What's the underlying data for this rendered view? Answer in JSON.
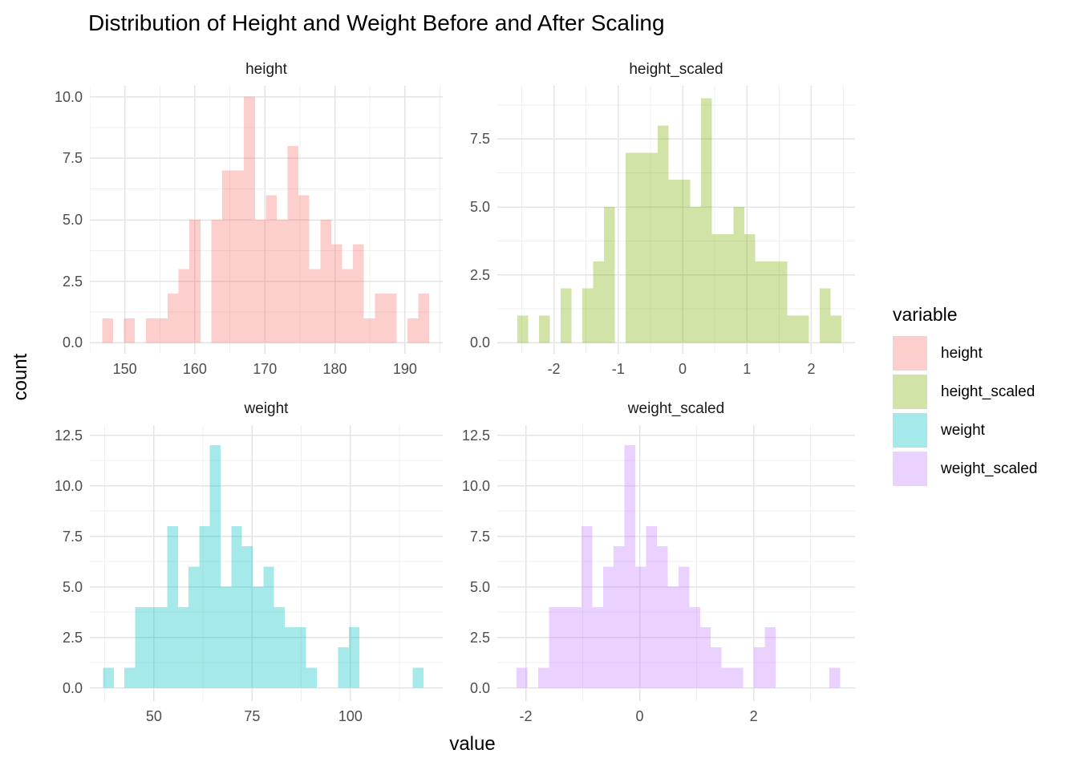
{
  "title": "Distribution of Height and Weight Before and After Scaling",
  "axes": {
    "x_label": "value",
    "y_label": "count"
  },
  "legend": {
    "title": "variable",
    "entries": [
      {
        "label": "height",
        "color": "#F8766D"
      },
      {
        "label": "height_scaled",
        "color": "#7CAE00"
      },
      {
        "label": "weight",
        "color": "#00BFC4"
      },
      {
        "label": "weight_scaled",
        "color": "#C77CFF"
      }
    ]
  },
  "style": {
    "fill_alpha": 0.35,
    "grid_major_color": "#E4E4E4",
    "grid_minor_color": "#EFEFEF",
    "tick_label_color": "#4D4D4D",
    "text_color": "#1A1A1A"
  },
  "chart_data": [
    {
      "type": "bar",
      "title": "height",
      "color": "#F8766D",
      "bin_start": 146.77,
      "bin_width": 1.557,
      "counts": [
        1,
        0,
        1,
        0,
        1,
        1,
        2,
        3,
        5,
        0,
        5,
        7,
        7,
        10,
        5,
        6,
        5,
        8,
        6,
        3,
        5,
        4,
        3,
        4,
        1,
        2,
        2,
        0,
        1,
        2
      ],
      "total_n": 100,
      "xlim": [
        145.0,
        195.4
      ],
      "ylim": [
        -0.44,
        10.44
      ],
      "x_ticks": [
        150,
        160,
        170,
        180,
        190
      ],
      "x_tick_labels": [
        "150",
        "160",
        "170",
        "180",
        "190"
      ],
      "y_ticks": [
        0,
        2.5,
        5,
        7.5,
        10
      ],
      "y_tick_labels": [
        "0.0",
        "2.5",
        "5.0",
        "7.5",
        "10.0"
      ],
      "grid": true,
      "legend_position": "right"
    },
    {
      "type": "bar",
      "title": "height_scaled",
      "color": "#7CAE00",
      "bin_start": -2.566,
      "bin_width": 0.1678,
      "counts": [
        1,
        0,
        1,
        0,
        2,
        0,
        2,
        3,
        5,
        0,
        7,
        7,
        7,
        8,
        6,
        6,
        5,
        9,
        4,
        4,
        5,
        4,
        3,
        3,
        3,
        1,
        1,
        0,
        2,
        1
      ],
      "total_n": 100,
      "xlim": [
        -2.88,
        2.68
      ],
      "ylim": [
        -0.4,
        9.46
      ],
      "x_ticks": [
        -2,
        -1,
        0,
        1,
        2
      ],
      "x_tick_labels": [
        "-2",
        "-1",
        "0",
        "1",
        "2"
      ],
      "y_ticks": [
        0,
        2.5,
        5,
        7.5
      ],
      "y_tick_labels": [
        "0.0",
        "2.5",
        "5.0",
        "7.5"
      ],
      "grid": true,
      "legend_position": "right"
    },
    {
      "type": "bar",
      "title": "weight",
      "color": "#00BFC4",
      "bin_start": 37.08,
      "bin_width": 2.717,
      "counts": [
        1,
        0,
        1,
        4,
        4,
        4,
        8,
        4,
        6,
        8,
        12,
        5,
        8,
        7,
        5,
        6,
        4,
        3,
        3,
        1,
        0,
        0,
        2,
        3,
        0,
        0,
        0,
        0,
        0,
        1
      ],
      "total_n": 100,
      "xlim": [
        33.7,
        123.5
      ],
      "ylim": [
        -0.65,
        13.0
      ],
      "x_ticks": [
        50,
        75,
        100
      ],
      "x_tick_labels": [
        "50",
        "75",
        "100"
      ],
      "y_ticks": [
        0,
        2.5,
        5,
        7.5,
        10,
        12.5
      ],
      "y_tick_labels": [
        "0.0",
        "2.5",
        "5.0",
        "7.5",
        "10.0",
        "12.5"
      ],
      "grid": true,
      "legend_position": "right"
    },
    {
      "type": "bar",
      "title": "weight_scaled",
      "color": "#C77CFF",
      "bin_start": -2.159,
      "bin_width": 0.1893,
      "counts": [
        1,
        0,
        1,
        4,
        4,
        4,
        8,
        4,
        6,
        7,
        12,
        6,
        8,
        7,
        5,
        6,
        4,
        3,
        2,
        1,
        1,
        0,
        2,
        3,
        0,
        0,
        0,
        0,
        0,
        1
      ],
      "total_n": 100,
      "xlim": [
        -2.5,
        3.78
      ],
      "ylim": [
        -0.65,
        13.0
      ],
      "x_ticks": [
        -2,
        0,
        2
      ],
      "x_tick_labels": [
        "-2",
        "0",
        "2"
      ],
      "y_ticks": [
        0,
        2.5,
        5,
        7.5,
        10,
        12.5
      ],
      "y_tick_labels": [
        "0.0",
        "2.5",
        "5.0",
        "7.5",
        "10.0",
        "12.5"
      ],
      "grid": true,
      "legend_position": "right"
    }
  ]
}
